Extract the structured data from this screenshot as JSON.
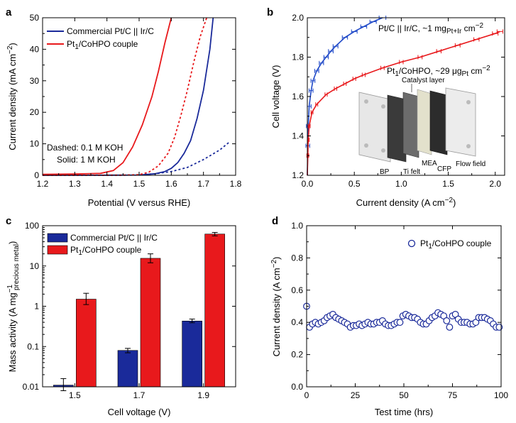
{
  "colors": {
    "blue": "#1a2a9a",
    "red": "#e8191c",
    "inset_blue": "#1f49c8"
  },
  "chart_data": [
    {
      "panel_label": "a",
      "type": "line",
      "xlabel": "Potential (V versus RHE)",
      "ylabel": "Current density (mA cm",
      "ylabel_sup": "−2",
      "ylabel_tail": ")",
      "xlim": [
        1.2,
        1.8
      ],
      "ylim": [
        0,
        50
      ],
      "xticks": [
        "1.2",
        "1.3",
        "1.4",
        "1.5",
        "1.6",
        "1.7",
        "1.8"
      ],
      "yticks": [
        "0",
        "10",
        "20",
        "30",
        "40",
        "50"
      ],
      "legend": [
        {
          "name": "Commercial Pt/C || Ir/C",
          "color": "#1a2a9a"
        },
        {
          "name_main": "Pt",
          "name_sub": "1",
          "name_tail": "/CoHPO couple",
          "color": "#e8191c"
        }
      ],
      "annotations": [
        "Dashed: 0.1 M KOH",
        "Solid: 1 M KOH"
      ],
      "series": [
        {
          "color": "#1a2a9a",
          "dash": false,
          "x": [
            1.2,
            1.4,
            1.5,
            1.55,
            1.58,
            1.6,
            1.62,
            1.64,
            1.66,
            1.68,
            1.7,
            1.72,
            1.73
          ],
          "y": [
            0,
            0.05,
            0.1,
            0.5,
            1.2,
            2.2,
            4,
            7,
            11,
            18,
            27,
            40,
            50
          ]
        },
        {
          "color": "#e8191c",
          "dash": false,
          "x": [
            1.2,
            1.3,
            1.38,
            1.42,
            1.45,
            1.48,
            1.51,
            1.54,
            1.56,
            1.58,
            1.6
          ],
          "y": [
            0.3,
            0.4,
            0.6,
            1.5,
            4,
            9,
            16,
            25,
            33,
            42,
            50
          ]
        },
        {
          "color": "#1a2a9a",
          "dash": true,
          "x": [
            1.2,
            1.45,
            1.5,
            1.55,
            1.6,
            1.65,
            1.7,
            1.75,
            1.78
          ],
          "y": [
            0,
            0.05,
            0.15,
            0.5,
            1.2,
            2.5,
            5,
            8,
            10.5
          ]
        },
        {
          "color": "#e8191c",
          "dash": true,
          "x": [
            1.2,
            1.45,
            1.5,
            1.53,
            1.56,
            1.59,
            1.61,
            1.63,
            1.65,
            1.67,
            1.69,
            1.71
          ],
          "y": [
            0,
            0.05,
            0.2,
            1,
            3,
            7,
            12,
            19,
            27,
            36,
            44,
            50
          ]
        }
      ]
    },
    {
      "panel_label": "b",
      "type": "line",
      "xlabel": "Current density (A cm",
      "xlabel_sup": "−2",
      "xlabel_tail": ")",
      "ylabel": "Cell voltage (V)",
      "xlim": [
        0,
        2.1
      ],
      "ylim": [
        1.2,
        2.0
      ],
      "xticks": [
        "0.0",
        "0.5",
        "1.0",
        "1.5",
        "2.0"
      ],
      "yticks": [
        "1.2",
        "1.4",
        "1.6",
        "1.8",
        "2.0"
      ],
      "annotation_blue": {
        "main": "Pt/C || Ir/C, ~1 mg",
        "sub": "Pt+Ir",
        "tail": " cm",
        "sup": "−2"
      },
      "annotation_red": {
        "main": "Pt",
        "sub1": "1",
        "mid": "/CoHPO, ~29 μg",
        "sub2": "Pt",
        "tail": " cm",
        "sup": "−2"
      },
      "inset_labels": [
        "Catalyst layer",
        "BP",
        "Ti felt",
        "MEA",
        "CFP",
        "Flow field"
      ],
      "series": [
        {
          "color": "#1f49c8",
          "x": [
            0,
            0.005,
            0.01,
            0.02,
            0.04,
            0.06,
            0.1,
            0.15,
            0.2,
            0.25,
            0.3,
            0.4,
            0.5,
            0.6,
            0.7,
            0.8
          ],
          "y": [
            1.2,
            1.35,
            1.45,
            1.55,
            1.63,
            1.68,
            1.73,
            1.77,
            1.8,
            1.83,
            1.855,
            1.9,
            1.93,
            1.955,
            1.98,
            2.0
          ],
          "err": 0.02
        },
        {
          "color": "#e8191c",
          "x": [
            0,
            0.005,
            0.01,
            0.02,
            0.05,
            0.1,
            0.2,
            0.3,
            0.4,
            0.5,
            0.6,
            0.8,
            1.0,
            1.2,
            1.4,
            1.6,
            1.8,
            2.0,
            2.05
          ],
          "y": [
            1.2,
            1.3,
            1.38,
            1.45,
            1.52,
            1.56,
            1.61,
            1.64,
            1.665,
            1.69,
            1.71,
            1.745,
            1.775,
            1.8,
            1.83,
            1.86,
            1.89,
            1.92,
            1.93
          ],
          "err": 0.01
        }
      ]
    },
    {
      "panel_label": "c",
      "type": "bar",
      "xlabel": "Cell voltage (V)",
      "ylabel": "Mass activity (A mg",
      "ylabel_sup": "−1",
      "ylabel_sub": "precious metal",
      "ylabel_tail": ")",
      "yscale": "log",
      "ylim": [
        0.01,
        100
      ],
      "categories": [
        "1.5",
        "1.7",
        "1.9"
      ],
      "yticks": [
        "0.01",
        "0.1",
        "1",
        "10",
        "100"
      ],
      "legend": [
        {
          "name": "Commercial Pt/C || Ir/C",
          "color": "#1a2a9a"
        },
        {
          "name_main": "Pt",
          "name_sub": "1",
          "name_tail": "/CoHPO couple",
          "color": "#e8191c"
        }
      ],
      "series": [
        {
          "color": "#1a2a9a",
          "values": [
            0.011,
            0.08,
            0.43
          ],
          "err_lo": [
            0.008,
            0.07,
            0.39
          ],
          "err_hi": [
            0.016,
            0.09,
            0.48
          ]
        },
        {
          "color": "#e8191c",
          "values": [
            1.5,
            15.5,
            62
          ],
          "err_lo": [
            1.1,
            12,
            56
          ],
          "err_hi": [
            2.1,
            20,
            68
          ]
        }
      ]
    },
    {
      "panel_label": "d",
      "type": "scatter",
      "xlabel": "Test time (hrs)",
      "ylabel": "Current density (A cm",
      "ylabel_sup": "−2",
      "ylabel_tail": ")",
      "xlim": [
        0,
        100
      ],
      "ylim": [
        0,
        1.0
      ],
      "xticks": [
        "0",
        "25",
        "50",
        "75",
        "100"
      ],
      "yticks": [
        "0.0",
        "0.2",
        "0.4",
        "0.6",
        "0.8",
        "1.0"
      ],
      "legend": [
        {
          "name_main": "Pt",
          "name_sub": "1",
          "name_tail": "/CoHPO couple",
          "color": "#1a2a9a"
        }
      ],
      "series": [
        {
          "color": "#1a2a9a",
          "x": [
            0,
            1.5,
            3,
            4.5,
            6,
            7.5,
            9,
            10.5,
            12,
            13.5,
            15,
            16.5,
            18,
            19.5,
            21,
            22.5,
            24,
            25.5,
            27,
            28.5,
            30,
            31.5,
            33,
            34.5,
            36,
            37.5,
            39,
            40.5,
            42,
            43.5,
            45,
            46.5,
            48,
            49.5,
            51,
            52.5,
            54,
            55.5,
            57,
            58.5,
            60,
            61.5,
            63,
            64.5,
            66,
            67.5,
            69,
            70.5,
            72,
            73.5,
            75,
            76.5,
            78,
            79.5,
            81,
            82.5,
            84,
            85.5,
            87,
            88.5,
            90,
            91.5,
            93,
            94.5,
            96,
            97.5,
            99
          ],
          "y": [
            0.5,
            0.37,
            0.39,
            0.4,
            0.39,
            0.4,
            0.41,
            0.43,
            0.44,
            0.45,
            0.43,
            0.42,
            0.41,
            0.4,
            0.39,
            0.37,
            0.38,
            0.38,
            0.39,
            0.38,
            0.39,
            0.4,
            0.39,
            0.39,
            0.4,
            0.4,
            0.41,
            0.39,
            0.38,
            0.38,
            0.39,
            0.4,
            0.4,
            0.44,
            0.45,
            0.44,
            0.43,
            0.43,
            0.42,
            0.4,
            0.39,
            0.39,
            0.41,
            0.43,
            0.44,
            0.46,
            0.45,
            0.44,
            0.41,
            0.37,
            0.44,
            0.45,
            0.42,
            0.4,
            0.4,
            0.4,
            0.39,
            0.39,
            0.4,
            0.43,
            0.43,
            0.43,
            0.42,
            0.41,
            0.39,
            0.37,
            0.37
          ]
        }
      ]
    }
  ]
}
